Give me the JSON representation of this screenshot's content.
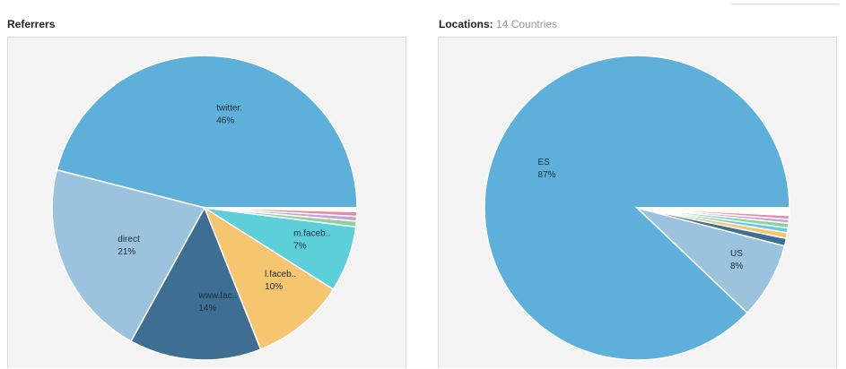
{
  "panels": {
    "referrers": {
      "title": "Referrers"
    },
    "locations": {
      "title": "Locations:",
      "subtitle": "14 Countries"
    }
  },
  "chart_data": [
    {
      "type": "pie",
      "title": "Referrers",
      "slices": [
        {
          "label": "twitter.",
          "pct_label": "46%",
          "value": 46,
          "color": "#5eafd9"
        },
        {
          "label": "direct",
          "pct_label": "21%",
          "value": 21,
          "color": "#9cc3dd"
        },
        {
          "label": "www.fac..",
          "pct_label": "14%",
          "value": 14,
          "color": "#3e6e92"
        },
        {
          "label": "l.faceb..",
          "pct_label": "10%",
          "value": 10,
          "color": "#f6c56f"
        },
        {
          "label": "m.faceb..",
          "pct_label": "7%",
          "value": 7,
          "color": "#5ccfd8"
        },
        {
          "label": "",
          "pct_label": "",
          "value": 0.6,
          "color": "#8fd19e"
        },
        {
          "label": "",
          "pct_label": "",
          "value": 0.5,
          "color": "#c9a0dc"
        },
        {
          "label": "",
          "pct_label": "",
          "value": 0.5,
          "color": "#e88aa5"
        },
        {
          "label": "",
          "pct_label": "",
          "value": 0.4,
          "color": "#ffffff"
        }
      ]
    },
    {
      "type": "pie",
      "title": "Locations: 14 Countries",
      "slices": [
        {
          "label": "ES",
          "pct_label": "87%",
          "value": 87,
          "color": "#5eafd9"
        },
        {
          "label": "US",
          "pct_label": "8%",
          "value": 8,
          "color": "#9cc3dd"
        },
        {
          "label": "",
          "pct_label": "",
          "value": 0.8,
          "color": "#3e6e92"
        },
        {
          "label": "",
          "pct_label": "",
          "value": 0.6,
          "color": "#f6c56f"
        },
        {
          "label": "",
          "pct_label": "",
          "value": 0.5,
          "color": "#5ccfd8"
        },
        {
          "label": "",
          "pct_label": "",
          "value": 0.5,
          "color": "#8fd19e"
        },
        {
          "label": "",
          "pct_label": "",
          "value": 0.4,
          "color": "#c9a0dc"
        },
        {
          "label": "",
          "pct_label": "",
          "value": 0.4,
          "color": "#e88aa5"
        },
        {
          "label": "",
          "pct_label": "",
          "value": 0.8,
          "color": "#ffffff"
        }
      ]
    }
  ]
}
